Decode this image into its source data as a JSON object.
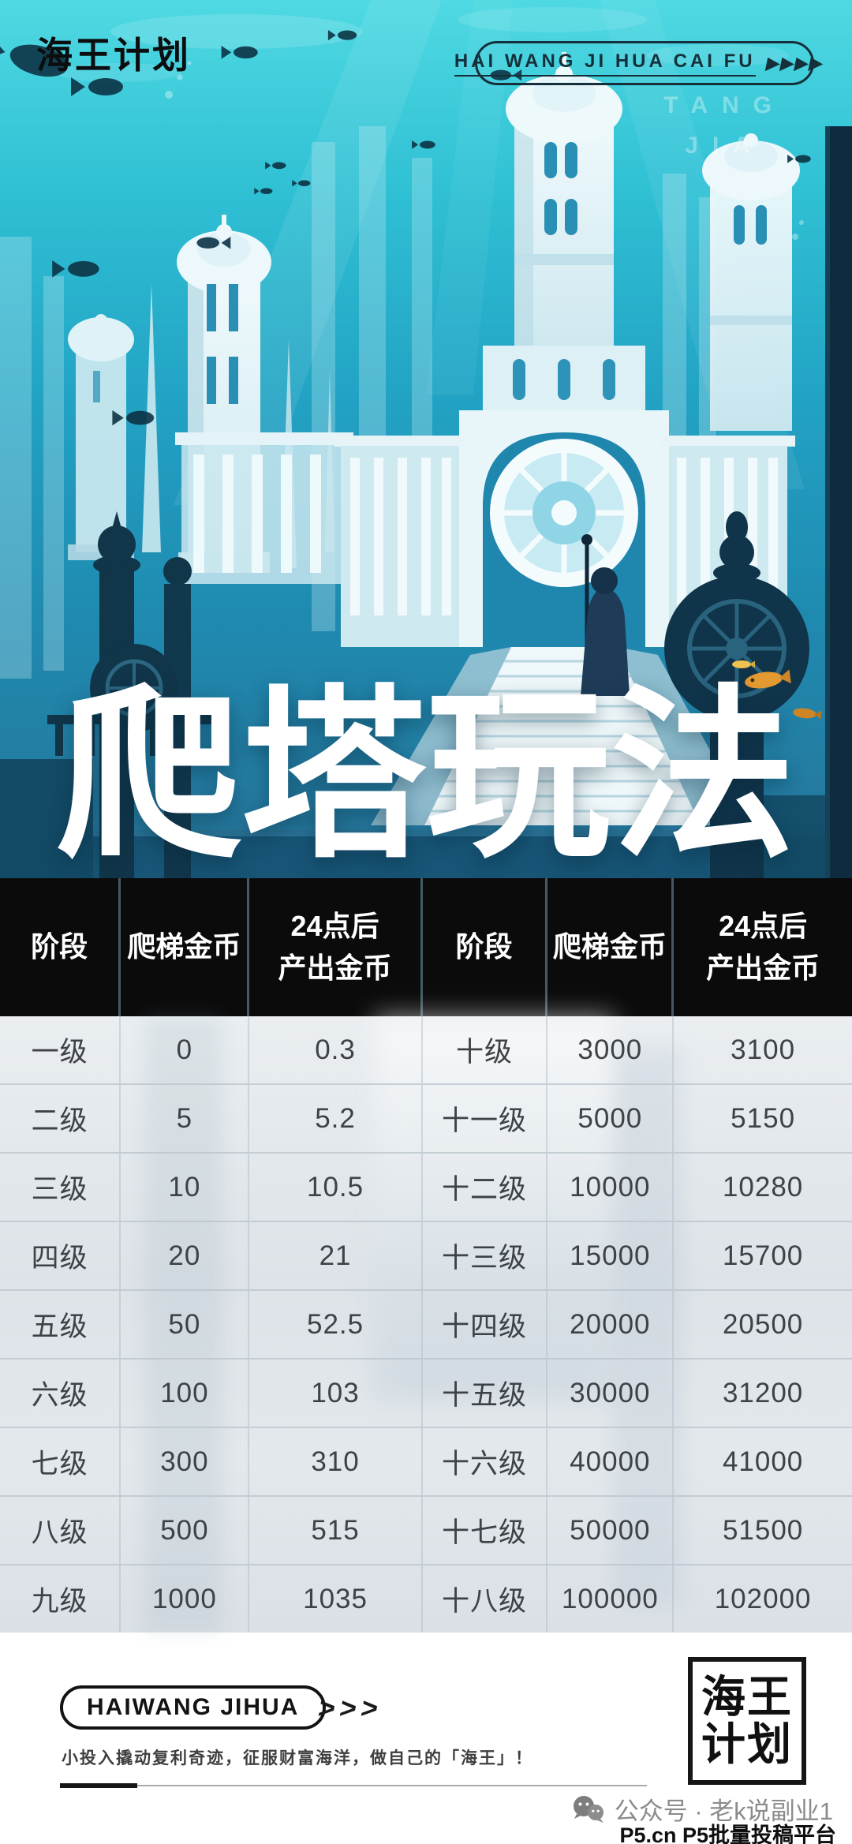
{
  "topbar": {
    "logo_text": "海王计划",
    "tagline": "HAI WANG JI HUA CAI FU",
    "arrows": "▶▶▶▶",
    "watermark_line1": "TANG",
    "watermark_line2": "JIA"
  },
  "hero": {
    "title": "爬塔玩法"
  },
  "table": {
    "headers": [
      "阶段",
      "爬梯金币",
      "24点后\n产出金币",
      "阶段",
      "爬梯金币",
      "24点后\n产出金币"
    ],
    "rows": [
      [
        "一级",
        "0",
        "0.3",
        "十级",
        "3000",
        "3100"
      ],
      [
        "二级",
        "5",
        "5.2",
        "十一级",
        "5000",
        "5150"
      ],
      [
        "三级",
        "10",
        "10.5",
        "十二级",
        "10000",
        "10280"
      ],
      [
        "四级",
        "20",
        "21",
        "十三级",
        "15000",
        "15700"
      ],
      [
        "五级",
        "50",
        "52.5",
        "十四级",
        "20000",
        "20500"
      ],
      [
        "六级",
        "100",
        "103",
        "十五级",
        "30000",
        "31200"
      ],
      [
        "七级",
        "300",
        "310",
        "十六级",
        "40000",
        "41000"
      ],
      [
        "八级",
        "500",
        "515",
        "十七级",
        "50000",
        "51500"
      ],
      [
        "九级",
        "1000",
        "1035",
        "十八级",
        "100000",
        "102000"
      ]
    ]
  },
  "footer": {
    "brand": "HAIWANG JIHUA",
    "chevrons": ">>>",
    "slogan": "小投入撬动复利奇迹，征服财富海洋，做自己的「海王」！",
    "stamp_line1": "海王",
    "stamp_line2": "计划",
    "wechat_label": "公众号 · 老k说副业1",
    "platform_label": "P5.cn P5批量投稿平台"
  },
  "colors": {
    "water_teal": "#2fc0d4",
    "deep_blue": "#1f86ad",
    "header_black": "#0b0b0c",
    "panel_light": "#e3e8ec",
    "body_text": "#3e4246",
    "orange_fish": "#e29a31"
  }
}
